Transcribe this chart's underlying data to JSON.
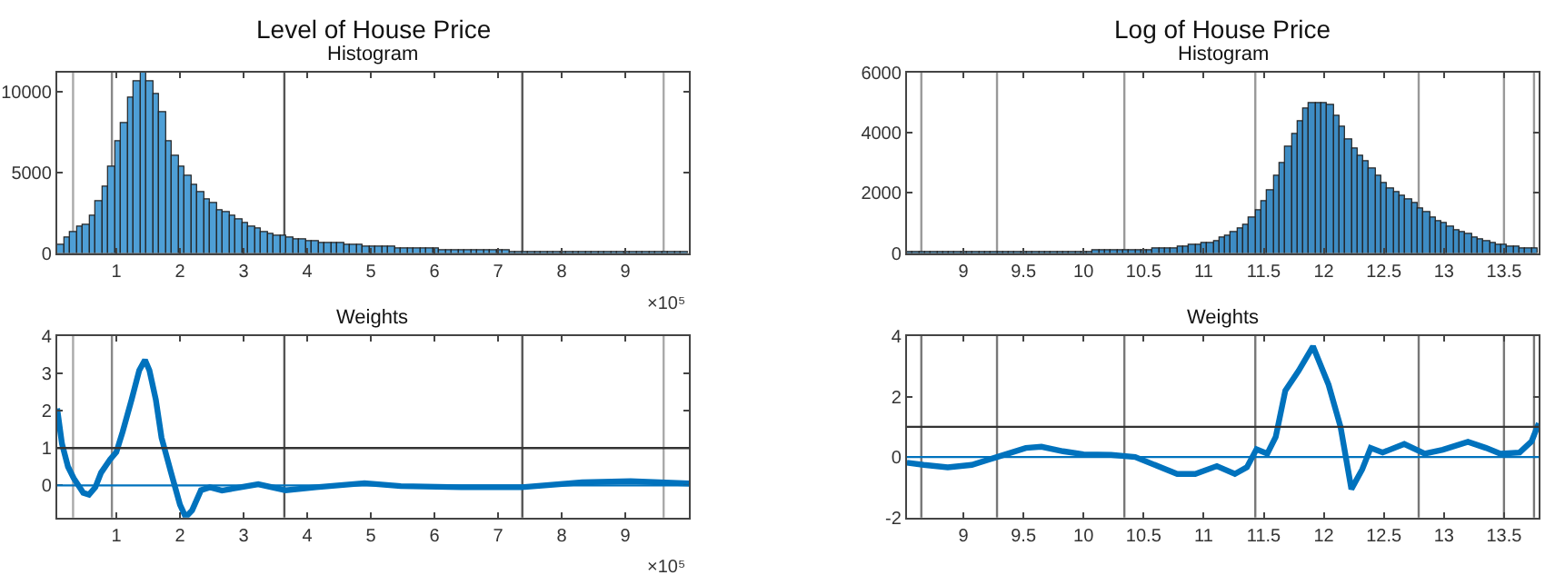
{
  "chart_data": [
    {
      "type": "histogram",
      "title": "Level of House Price",
      "subtitle": "Histogram",
      "color": "#4e9fd6",
      "xlim": [
        0.07,
        10
      ],
      "xticks": [
        1,
        2,
        3,
        4,
        5,
        6,
        7,
        8,
        9
      ],
      "ylim": [
        0,
        11200
      ],
      "yticks": [
        0,
        5000,
        10000
      ],
      "annotations": [
        "×10⁵"
      ],
      "bins": [
        0.07,
        0.17,
        0.27,
        0.37,
        0.47,
        0.57,
        0.67,
        0.77,
        0.87,
        0.97,
        1.07,
        1.17,
        1.27,
        1.37,
        1.47,
        1.57,
        1.67,
        1.77,
        1.87,
        1.97,
        2.07,
        2.17,
        2.27,
        2.37,
        2.47,
        2.57,
        2.67,
        2.77,
        2.87,
        2.97,
        3.07,
        3.17,
        3.27,
        3.37,
        3.47,
        3.57,
        3.67,
        3.77,
        3.87,
        3.97,
        4.07,
        4.17,
        4.27,
        4.37,
        4.47,
        4.57,
        4.67,
        4.77,
        4.87,
        4.97,
        5.07,
        5.17,
        5.27,
        5.37,
        5.47,
        5.57,
        5.67,
        5.77,
        5.87,
        5.97,
        6.07,
        6.17,
        6.27,
        6.37,
        6.47,
        6.57,
        6.67,
        6.77,
        6.87,
        6.97,
        7.07,
        7.17,
        7.27,
        7.37,
        7.47,
        7.57,
        7.67,
        7.77,
        7.87,
        7.97,
        8.07,
        8.17,
        8.27,
        8.37,
        8.47,
        8.57,
        8.67,
        8.77,
        8.87,
        8.97,
        9.07,
        9.17,
        9.27,
        9.37,
        9.47,
        9.57,
        9.67,
        9.77,
        9.87,
        9.97
      ],
      "values": [
        500,
        1000,
        1300,
        1600,
        1800,
        2300,
        3200,
        4100,
        5300,
        6900,
        8100,
        9600,
        10600,
        11200,
        10600,
        9800,
        8700,
        6900,
        6000,
        5300,
        4800,
        4200,
        3800,
        3300,
        3100,
        2700,
        2500,
        2300,
        2100,
        1900,
        1600,
        1550,
        1350,
        1200,
        1100,
        1050,
        1000,
        900,
        850,
        780,
        720,
        670,
        630,
        600,
        570,
        540,
        510,
        480,
        450,
        420,
        400,
        380,
        360,
        340,
        320,
        300,
        285,
        270,
        255,
        240,
        225,
        210,
        200,
        190,
        180,
        170,
        160,
        150,
        140,
        130,
        120,
        115,
        110,
        100,
        95,
        90,
        85,
        80,
        75,
        70,
        65,
        60,
        58,
        55,
        52,
        50,
        48,
        45,
        42,
        40,
        38,
        36,
        34,
        32,
        30,
        28,
        26,
        24,
        22
      ],
      "ref_lines": [
        {
          "axis": "x",
          "value": 0.32,
          "color": "#aaaaaa"
        },
        {
          "axis": "x",
          "value": 0.93,
          "color": "#888888"
        },
        {
          "axis": "x",
          "value": 3.64,
          "color": "#555555"
        },
        {
          "axis": "x",
          "value": 7.38,
          "color": "#555555"
        },
        {
          "axis": "x",
          "value": 9.6,
          "color": "#aaaaaa"
        }
      ]
    },
    {
      "type": "line",
      "title": "Weights",
      "color": "#0072bd",
      "xlim": [
        0.07,
        10
      ],
      "xticks": [
        1,
        2,
        3,
        4,
        5,
        6,
        7,
        8,
        9
      ],
      "ylim": [
        -0.86,
        4
      ],
      "yticks": [
        0,
        1,
        2,
        3,
        4
      ],
      "annotations": [
        "×10⁵"
      ],
      "x": [
        0.07,
        0.145,
        0.24,
        0.33,
        0.48,
        0.57,
        0.67,
        0.76,
        0.9,
        1.0,
        1.1,
        1.24,
        1.36,
        1.45,
        1.52,
        1.62,
        1.71,
        1.86,
        2.0,
        2.09,
        2.19,
        2.33,
        2.47,
        2.66,
        2.85,
        3.23,
        3.66,
        4.14,
        4.9,
        5.47,
        6.42,
        7.37,
        8.32,
        9.08,
        10.0
      ],
      "values": [
        2.06,
        1.12,
        0.5,
        0.19,
        -0.2,
        -0.25,
        -0.05,
        0.34,
        0.69,
        0.89,
        1.44,
        2.3,
        3.08,
        3.36,
        3.08,
        2.3,
        1.28,
        0.34,
        -0.52,
        -0.85,
        -0.67,
        -0.13,
        -0.05,
        -0.14,
        -0.08,
        0.03,
        -0.13,
        -0.05,
        0.06,
        -0.02,
        -0.05,
        -0.05,
        0.08,
        0.11,
        0.05
      ],
      "ref_lines": [
        {
          "axis": "x",
          "value": 0.32,
          "color": "#aaaaaa"
        },
        {
          "axis": "x",
          "value": 0.93,
          "color": "#888888"
        },
        {
          "axis": "x",
          "value": 3.64,
          "color": "#555555"
        },
        {
          "axis": "x",
          "value": 7.38,
          "color": "#555555"
        },
        {
          "axis": "x",
          "value": 9.6,
          "color": "#aaaaaa"
        },
        {
          "axis": "y",
          "value": 1,
          "color": "#333333"
        },
        {
          "axis": "y",
          "value": 0,
          "color": "#0072bd"
        }
      ]
    },
    {
      "type": "histogram",
      "title": "Log of House Price",
      "subtitle": "Histogram",
      "color": "#3d8cc4",
      "xlim": [
        8.53,
        13.79
      ],
      "xticks": [
        9,
        9.5,
        10,
        10.5,
        11,
        11.5,
        12,
        12.5,
        13,
        13.5
      ],
      "ylim": [
        0,
        6000
      ],
      "yticks": [
        0,
        2000,
        4000,
        6000
      ],
      "bins": [
        8.53,
        8.58,
        8.63,
        8.68,
        8.73,
        8.78,
        8.83,
        8.88,
        8.93,
        8.98,
        9.03,
        9.08,
        9.13,
        9.18,
        9.23,
        9.28,
        9.33,
        9.38,
        9.43,
        9.48,
        9.53,
        9.58,
        9.63,
        9.68,
        9.73,
        9.78,
        9.83,
        9.88,
        9.93,
        9.98,
        10.03,
        10.08,
        10.13,
        10.18,
        10.23,
        10.28,
        10.33,
        10.38,
        10.43,
        10.48,
        10.53,
        10.58,
        10.63,
        10.68,
        10.73,
        10.78,
        10.83,
        10.88,
        10.93,
        10.98,
        11.03,
        11.08,
        11.13,
        11.18,
        11.23,
        11.28,
        11.33,
        11.38,
        11.43,
        11.48,
        11.53,
        11.58,
        11.63,
        11.68,
        11.73,
        11.78,
        11.83,
        11.88,
        11.93,
        11.98,
        12.03,
        12.08,
        12.13,
        12.18,
        12.23,
        12.28,
        12.33,
        12.38,
        12.43,
        12.48,
        12.53,
        12.58,
        12.63,
        12.68,
        12.73,
        12.78,
        12.83,
        12.88,
        12.93,
        12.98,
        13.03,
        13.08,
        13.13,
        13.18,
        13.23,
        13.28,
        13.33,
        13.38,
        13.43,
        13.48,
        13.53,
        13.58,
        13.63,
        13.68,
        13.73,
        13.78
      ],
      "values": [
        5,
        5,
        5,
        8,
        8,
        10,
        10,
        12,
        12,
        15,
        15,
        18,
        18,
        20,
        20,
        22,
        25,
        25,
        28,
        30,
        30,
        32,
        35,
        38,
        40,
        42,
        45,
        48,
        50,
        55,
        60,
        65,
        70,
        75,
        80,
        85,
        90,
        95,
        100,
        110,
        120,
        130,
        145,
        160,
        180,
        200,
        225,
        250,
        280,
        320,
        360,
        420,
        490,
        570,
        680,
        800,
        950,
        1150,
        1400,
        1700,
        2100,
        2550,
        3000,
        3500,
        3950,
        4400,
        4800,
        4950,
        5000,
        4950,
        4900,
        4550,
        4200,
        3750,
        3450,
        3250,
        3050,
        2800,
        2550,
        2300,
        2150,
        2000,
        1900,
        1750,
        1630,
        1480,
        1330,
        1200,
        1080,
        980,
        880,
        780,
        700,
        620,
        540,
        470,
        410,
        350,
        300,
        260,
        220,
        190,
        170,
        150,
        130
      ],
      "ref_lines": [
        {
          "axis": "x",
          "value": 8.65,
          "color": "#999999"
        },
        {
          "axis": "x",
          "value": 9.28,
          "color": "#999999"
        },
        {
          "axis": "x",
          "value": 10.34,
          "color": "#999999"
        },
        {
          "axis": "x",
          "value": 11.43,
          "color": "#999999"
        },
        {
          "axis": "x",
          "value": 12.79,
          "color": "#999999"
        },
        {
          "axis": "x",
          "value": 13.5,
          "color": "#999999"
        },
        {
          "axis": "x",
          "value": 13.75,
          "color": "#999999"
        }
      ]
    },
    {
      "type": "line",
      "title": "Weights",
      "color": "#0072bd",
      "xlim": [
        8.53,
        13.79
      ],
      "xticks": [
        9,
        9.5,
        10,
        10.5,
        11,
        11.5,
        12,
        12.5,
        13,
        13.5
      ],
      "ylim": [
        -2,
        4
      ],
      "yticks": [
        -2,
        0,
        2,
        4
      ],
      "x": [
        8.53,
        8.67,
        8.87,
        9.07,
        9.28,
        9.52,
        9.65,
        9.83,
        10.0,
        10.23,
        10.43,
        10.63,
        10.78,
        10.93,
        11.11,
        11.26,
        11.36,
        11.44,
        11.53,
        11.6,
        11.68,
        11.79,
        11.91,
        12.04,
        12.14,
        12.23,
        12.32,
        12.39,
        12.49,
        12.67,
        12.84,
        12.99,
        13.2,
        13.35,
        13.47,
        13.63,
        13.73,
        13.79
      ],
      "values": [
        -0.19,
        -0.26,
        -0.34,
        -0.26,
        0,
        0.3,
        0.34,
        0.19,
        0.09,
        0.07,
        0,
        -0.32,
        -0.56,
        -0.56,
        -0.3,
        -0.56,
        -0.34,
        0.26,
        0.11,
        0.67,
        2.2,
        2.85,
        3.66,
        2.39,
        0.99,
        -1.06,
        -0.41,
        0.3,
        0.15,
        0.43,
        0.11,
        0.24,
        0.5,
        0.3,
        0.11,
        0.15,
        0.52,
        1.12
      ],
      "ref_lines": [
        {
          "axis": "x",
          "value": 8.65,
          "color": "#777777"
        },
        {
          "axis": "x",
          "value": 9.28,
          "color": "#777777"
        },
        {
          "axis": "x",
          "value": 10.34,
          "color": "#777777"
        },
        {
          "axis": "x",
          "value": 11.43,
          "color": "#777777"
        },
        {
          "axis": "x",
          "value": 12.79,
          "color": "#777777"
        },
        {
          "axis": "x",
          "value": 13.5,
          "color": "#777777"
        },
        {
          "axis": "x",
          "value": 13.75,
          "color": "#777777"
        },
        {
          "axis": "y",
          "value": 1,
          "color": "#333333"
        },
        {
          "axis": "y",
          "value": 0,
          "color": "#0072bd"
        }
      ]
    }
  ]
}
